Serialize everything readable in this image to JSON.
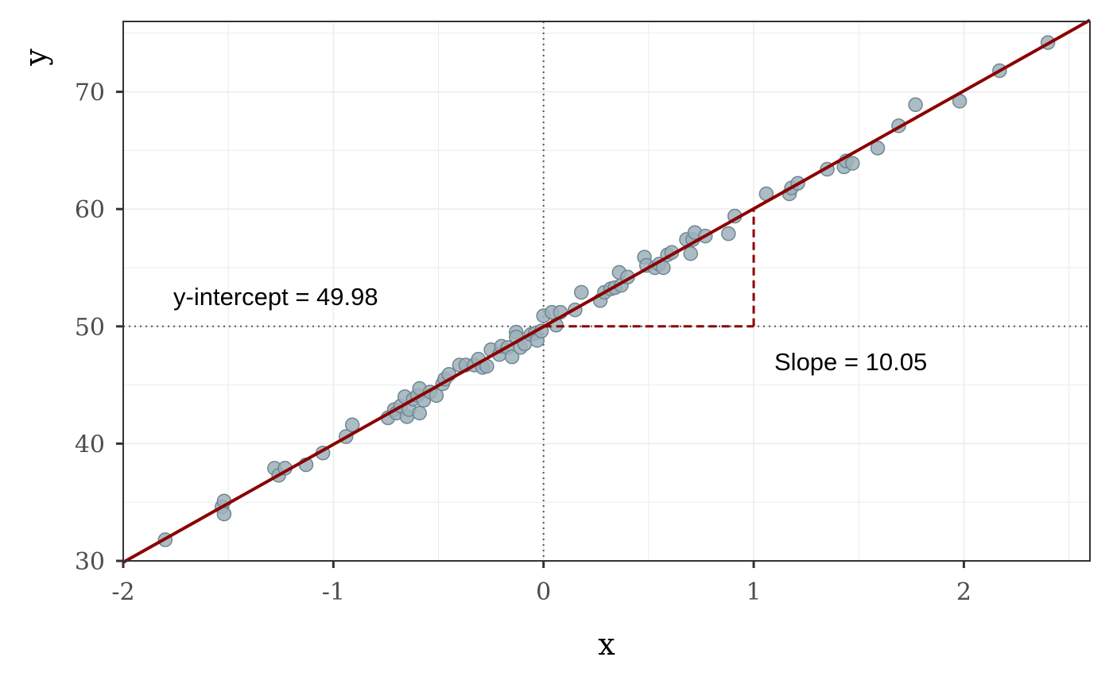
{
  "chart_data": {
    "type": "scatter",
    "xlabel": "x",
    "ylabel": "y",
    "xlim": [
      -2,
      2.6
    ],
    "ylim": [
      30,
      76
    ],
    "x_ticks": [
      "-2",
      "-1",
      "0",
      "1",
      "2"
    ],
    "y_ticks": [
      "30",
      "40",
      "50",
      "60",
      "70"
    ],
    "grid": true,
    "points": [
      {
        "x": -1.8,
        "y": 31.8
      },
      {
        "x": -1.53,
        "y": 34.6
      },
      {
        "x": -1.52,
        "y": 35.1
      },
      {
        "x": -1.52,
        "y": 34.0
      },
      {
        "x": -1.28,
        "y": 37.9
      },
      {
        "x": -1.26,
        "y": 37.3
      },
      {
        "x": -1.23,
        "y": 37.9
      },
      {
        "x": -1.13,
        "y": 38.2
      },
      {
        "x": -1.05,
        "y": 39.2
      },
      {
        "x": -0.94,
        "y": 40.6
      },
      {
        "x": -0.91,
        "y": 41.6
      },
      {
        "x": -0.74,
        "y": 42.2
      },
      {
        "x": -0.71,
        "y": 42.9
      },
      {
        "x": -0.7,
        "y": 42.6
      },
      {
        "x": -0.68,
        "y": 43.2
      },
      {
        "x": -0.66,
        "y": 44.0
      },
      {
        "x": -0.65,
        "y": 42.3
      },
      {
        "x": -0.64,
        "y": 42.9
      },
      {
        "x": -0.62,
        "y": 43.8
      },
      {
        "x": -0.6,
        "y": 44.1
      },
      {
        "x": -0.59,
        "y": 44.7
      },
      {
        "x": -0.59,
        "y": 42.6
      },
      {
        "x": -0.57,
        "y": 43.7
      },
      {
        "x": -0.54,
        "y": 44.4
      },
      {
        "x": -0.51,
        "y": 44.1
      },
      {
        "x": -0.48,
        "y": 45.1
      },
      {
        "x": -0.47,
        "y": 45.5
      },
      {
        "x": -0.45,
        "y": 45.9
      },
      {
        "x": -0.4,
        "y": 46.7
      },
      {
        "x": -0.37,
        "y": 46.7
      },
      {
        "x": -0.33,
        "y": 46.7
      },
      {
        "x": -0.31,
        "y": 47.2
      },
      {
        "x": -0.29,
        "y": 46.5
      },
      {
        "x": -0.27,
        "y": 46.6
      },
      {
        "x": -0.25,
        "y": 48.0
      },
      {
        "x": -0.21,
        "y": 47.6
      },
      {
        "x": -0.2,
        "y": 48.3
      },
      {
        "x": -0.17,
        "y": 48.2
      },
      {
        "x": -0.15,
        "y": 47.4
      },
      {
        "x": -0.13,
        "y": 49.5
      },
      {
        "x": -0.13,
        "y": 49.1
      },
      {
        "x": -0.11,
        "y": 48.2
      },
      {
        "x": -0.09,
        "y": 48.5
      },
      {
        "x": -0.06,
        "y": 49.3
      },
      {
        "x": -0.04,
        "y": 49.4
      },
      {
        "x": -0.03,
        "y": 48.8
      },
      {
        "x": -0.01,
        "y": 49.6
      },
      {
        "x": 0.0,
        "y": 50.9
      },
      {
        "x": 0.04,
        "y": 51.2
      },
      {
        "x": 0.06,
        "y": 50.1
      },
      {
        "x": 0.08,
        "y": 51.2
      },
      {
        "x": 0.15,
        "y": 51.4
      },
      {
        "x": 0.18,
        "y": 52.9
      },
      {
        "x": 0.27,
        "y": 52.2
      },
      {
        "x": 0.29,
        "y": 52.9
      },
      {
        "x": 0.32,
        "y": 53.2
      },
      {
        "x": 0.34,
        "y": 53.3
      },
      {
        "x": 0.36,
        "y": 54.6
      },
      {
        "x": 0.37,
        "y": 53.5
      },
      {
        "x": 0.4,
        "y": 54.2
      },
      {
        "x": 0.48,
        "y": 55.9
      },
      {
        "x": 0.49,
        "y": 55.2
      },
      {
        "x": 0.53,
        "y": 55.0
      },
      {
        "x": 0.55,
        "y": 55.3
      },
      {
        "x": 0.57,
        "y": 55.0
      },
      {
        "x": 0.59,
        "y": 56.1
      },
      {
        "x": 0.61,
        "y": 56.3
      },
      {
        "x": 0.68,
        "y": 57.4
      },
      {
        "x": 0.7,
        "y": 56.2
      },
      {
        "x": 0.71,
        "y": 57.4
      },
      {
        "x": 0.72,
        "y": 58.0
      },
      {
        "x": 0.77,
        "y": 57.7
      },
      {
        "x": 0.88,
        "y": 57.9
      },
      {
        "x": 0.91,
        "y": 59.4
      },
      {
        "x": 1.06,
        "y": 61.3
      },
      {
        "x": 1.17,
        "y": 61.3
      },
      {
        "x": 1.18,
        "y": 61.8
      },
      {
        "x": 1.21,
        "y": 62.2
      },
      {
        "x": 1.35,
        "y": 63.4
      },
      {
        "x": 1.43,
        "y": 63.6
      },
      {
        "x": 1.44,
        "y": 64.1
      },
      {
        "x": 1.47,
        "y": 63.9
      },
      {
        "x": 1.59,
        "y": 65.2
      },
      {
        "x": 1.69,
        "y": 67.1
      },
      {
        "x": 1.77,
        "y": 68.9
      },
      {
        "x": 1.98,
        "y": 69.2
      },
      {
        "x": 2.17,
        "y": 71.8
      },
      {
        "x": 2.4,
        "y": 74.2
      }
    ],
    "regression": {
      "intercept": 49.98,
      "slope": 10.05
    },
    "reference_lines": {
      "x": 0,
      "y": 50
    },
    "slope_triangle": {
      "x0": 0,
      "x1": 1,
      "y0": 50,
      "y1": 60
    },
    "annotations": {
      "intercept": "y-intercept =  49.98",
      "slope": "Slope =  10.05"
    },
    "colors": {
      "line": "#8B0000",
      "point_fill": "#9DB0BA",
      "point_stroke": "#6E8791",
      "grid": "#EBEBEB",
      "reference": "#555555"
    }
  }
}
